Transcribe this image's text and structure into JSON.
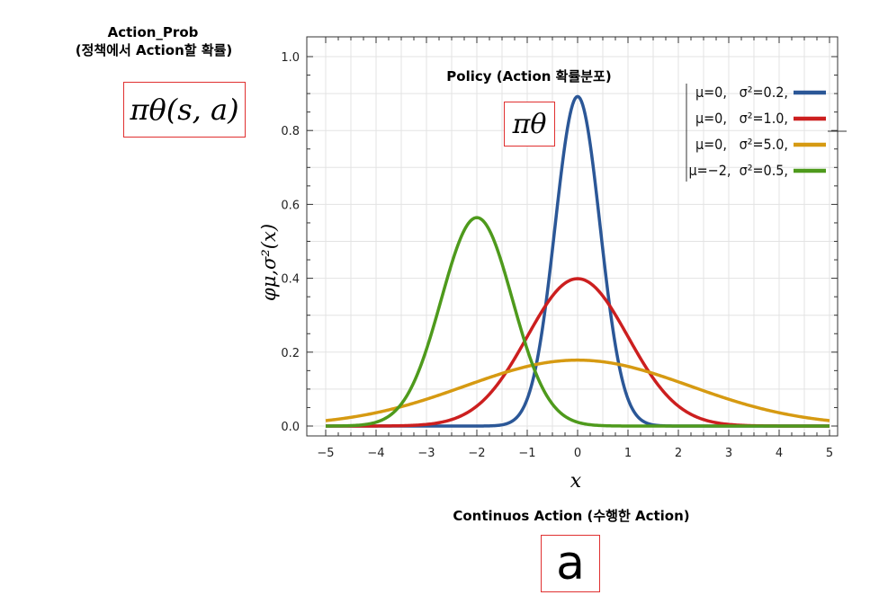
{
  "annotations": {
    "action_prob_title": "Action_Prob",
    "action_prob_subtitle": "(정책에서 Action할 확률)",
    "action_prob_formula": "πθ(s, a)",
    "policy_title": "Policy (Action 확률분포)",
    "policy_formula": "πθ",
    "continuous_title": "Continuos Action (수행한 Action)",
    "continuous_formula": "a"
  },
  "colors": {
    "blue": "#2b5797",
    "red": "#cc1f1f",
    "orange": "#d69a12",
    "green": "#4e9a1c"
  },
  "chart_data": {
    "type": "line",
    "xlabel": "x",
    "ylabel": "φμ,σ²(x)",
    "xlim": [
      -5,
      5
    ],
    "ylim": [
      0,
      1.0
    ],
    "x_ticks": [
      "−5",
      "−4",
      "−3",
      "−2",
      "−1",
      "0",
      "1",
      "2",
      "3",
      "4",
      "5"
    ],
    "y_ticks": [
      "0.0",
      "0.2",
      "0.4",
      "0.6",
      "0.8",
      "1.0"
    ],
    "grid": true,
    "legend_position": "top-right",
    "series": [
      {
        "name": "μ=0,   σ²=0.2,",
        "mu": 0,
        "variance": 0.2,
        "color": "#2b5797"
      },
      {
        "name": "μ=0,   σ²=1.0,",
        "mu": 0,
        "variance": 1.0,
        "color": "#cc1f1f"
      },
      {
        "name": "μ=0,   σ²=5.0,",
        "mu": 0,
        "variance": 5.0,
        "color": "#d69a12"
      },
      {
        "name": "μ=−2,  σ²=0.5,",
        "mu": -2,
        "variance": 0.5,
        "color": "#4e9a1c"
      }
    ]
  }
}
